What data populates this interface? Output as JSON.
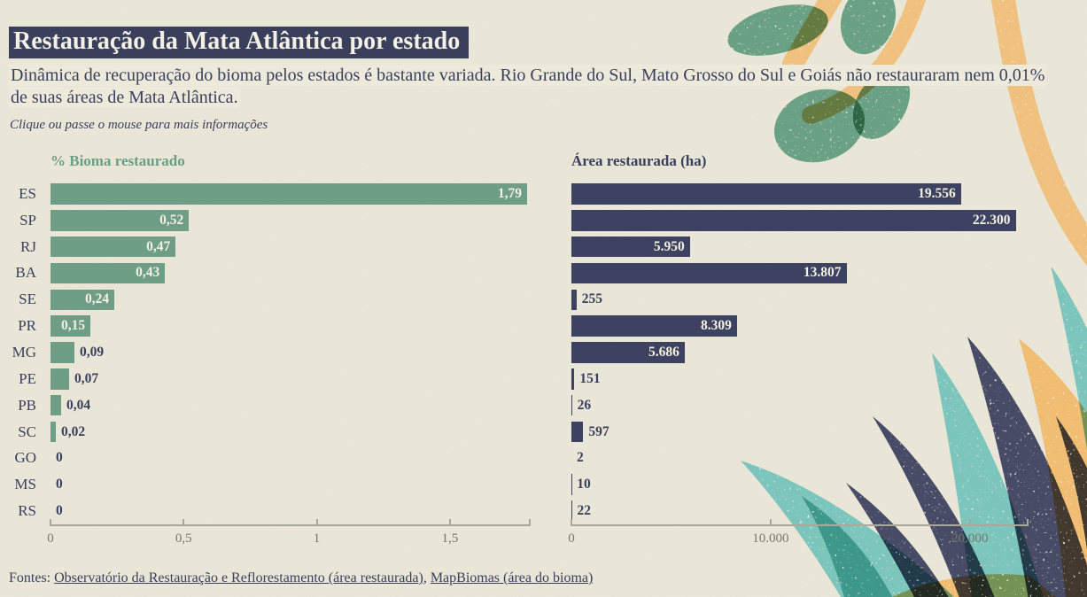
{
  "title": "Restauração da Mata Atlântica por estado",
  "subtitle": "Dinâmica de recuperação do bioma pelos estados é bastante variada. Rio Grande do Sul, Mato Grosso do Sul e Goiás não restauraram nem 0,01% de suas áreas de Mata Atlântica.",
  "note": "Clique ou passe o mouse para mais informações",
  "footer": {
    "label": "Fontes:",
    "separator": ", ",
    "sources": [
      {
        "text": "Observatório da Restauração e Reflorestamento (área restaurada)"
      },
      {
        "text": "MapBiomas (área do bioma)"
      }
    ]
  },
  "colors": {
    "background": "#EDEADB",
    "ink": "#3A3F5C",
    "green_bar": "#6F9E86",
    "navy_bar": "#3D4260",
    "green_header": "#6A9E85",
    "axis_line": "#A8A89C",
    "tick_text": "#75796D",
    "title_bg": "#3A3F5C",
    "title_text": "#F4F1E4",
    "teal_leaf": "#7CC5BC",
    "orange_leaf": "#F0C17E",
    "leaf_green": "#6BA184"
  },
  "chart_data": [
    {
      "type": "bar",
      "orientation": "horizontal",
      "title": "% Bioma restaurado",
      "categories": [
        "ES",
        "SP",
        "RJ",
        "BA",
        "SE",
        "PR",
        "MG",
        "PE",
        "PB",
        "SC",
        "GO",
        "MS",
        "RS"
      ],
      "values": [
        1.79,
        0.52,
        0.47,
        0.43,
        0.24,
        0.15,
        0.09,
        0.07,
        0.04,
        0.02,
        0,
        0,
        0
      ],
      "labels": [
        "1,79",
        "0,52",
        "0,47",
        "0,43",
        "0,24",
        "0,15",
        "0,09",
        "0,07",
        "0,04",
        "0,02",
        "0",
        "0",
        "0"
      ],
      "xlim": [
        0,
        1.8
      ],
      "ticks": [
        {
          "value": 0,
          "label": "0"
        },
        {
          "value": 0.5,
          "label": "0,5"
        },
        {
          "value": 1,
          "label": "1"
        },
        {
          "value": 1.5,
          "label": "1,5"
        }
      ],
      "grid": false,
      "bar_color": "#6F9E86"
    },
    {
      "type": "bar",
      "orientation": "horizontal",
      "title": "Área restaurada (ha)",
      "categories": [
        "ES",
        "SP",
        "RJ",
        "BA",
        "SE",
        "PR",
        "MG",
        "PE",
        "PB",
        "SC",
        "GO",
        "MS",
        "RS"
      ],
      "values": [
        19556,
        22300,
        5950,
        13807,
        255,
        8309,
        5686,
        151,
        26,
        597,
        2,
        10,
        22
      ],
      "labels": [
        "19.556",
        "22.300",
        "5.950",
        "13.807",
        "255",
        "8.309",
        "5.686",
        "151",
        "26",
        "597",
        "2",
        "10",
        "22"
      ],
      "xlim": [
        0,
        22900
      ],
      "ticks": [
        {
          "value": 0,
          "label": "0"
        },
        {
          "value": 10000,
          "label": "10.000"
        },
        {
          "value": 20000,
          "label": "20.000"
        }
      ],
      "grid": false,
      "bar_color": "#3D4260"
    }
  ]
}
